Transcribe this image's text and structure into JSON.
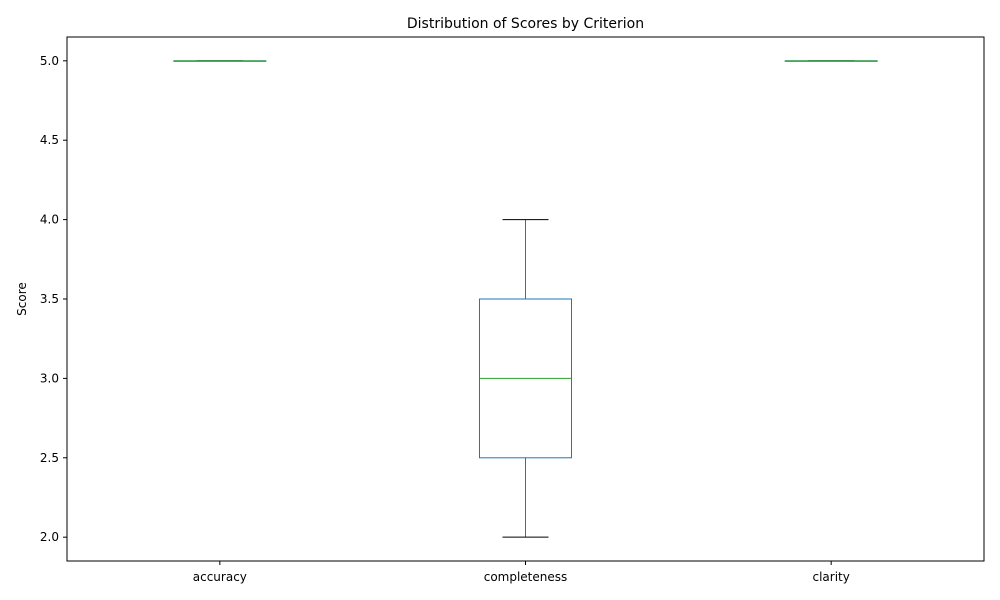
{
  "chart_data": {
    "type": "box",
    "title": "Distribution of Scores by Criterion",
    "xlabel": "",
    "ylabel": "Score",
    "categories": [
      "accuracy",
      "completeness",
      "clarity"
    ],
    "boxes": [
      {
        "category": "accuracy",
        "whisker_low": 5.0,
        "q1": 5.0,
        "median": 5.0,
        "q3": 5.0,
        "whisker_high": 5.0
      },
      {
        "category": "completeness",
        "whisker_low": 2.0,
        "q1": 2.5,
        "median": 3.0,
        "q3": 3.5,
        "whisker_high": 4.0
      },
      {
        "category": "clarity",
        "whisker_low": 5.0,
        "q1": 5.0,
        "median": 5.0,
        "q3": 5.0,
        "whisker_high": 5.0
      }
    ],
    "ylim": [
      1.85,
      5.15
    ],
    "yticks": [
      2.0,
      2.5,
      3.0,
      3.5,
      4.0,
      4.5,
      5.0
    ],
    "ytick_labels": [
      "2.0",
      "2.5",
      "3.0",
      "3.5",
      "4.0",
      "4.5",
      "5.0"
    ],
    "grid": false,
    "colors": {
      "box": "#1f77b4",
      "median": "#2ca02c",
      "cap": "#000000",
      "axis": "#000000"
    }
  }
}
